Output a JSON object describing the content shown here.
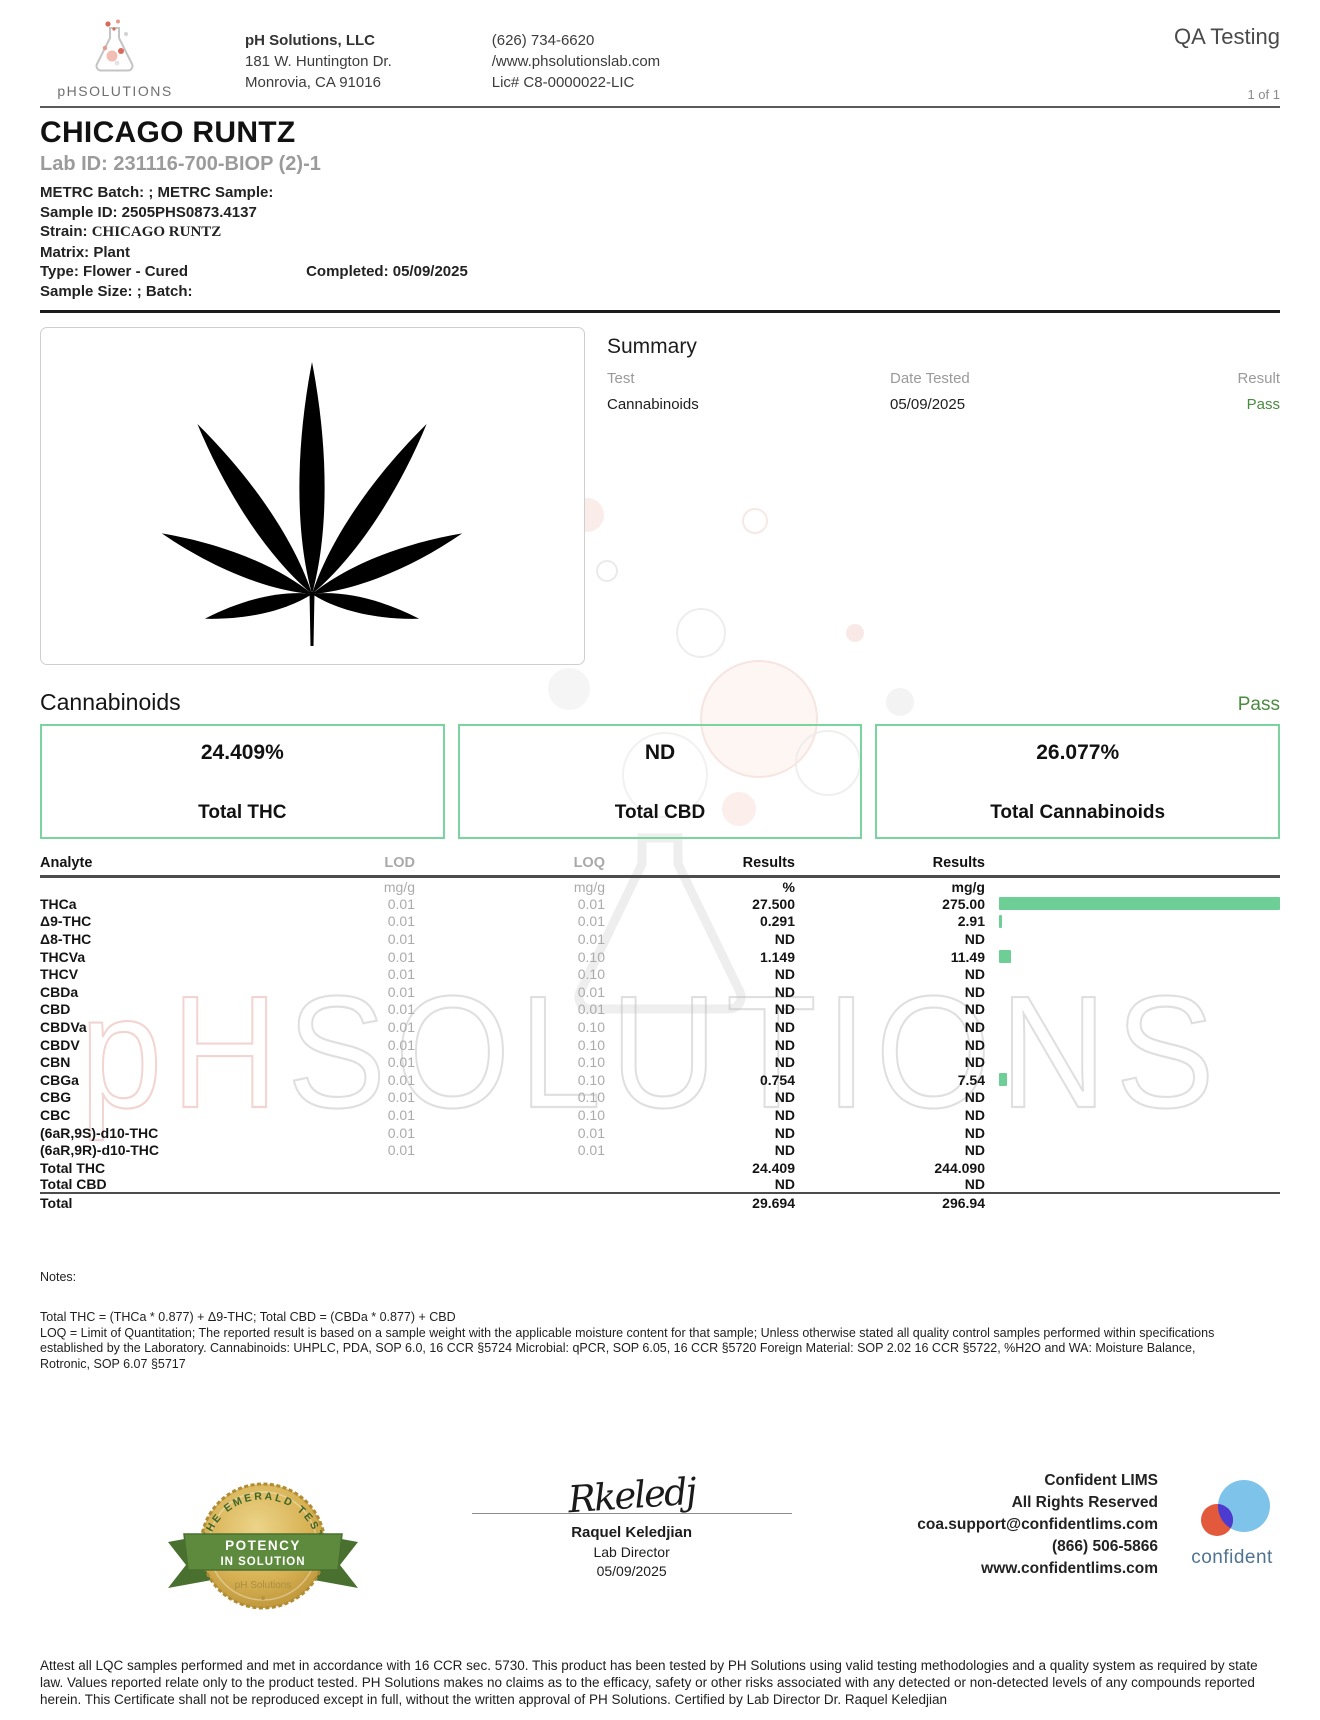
{
  "header": {
    "qa_label": "QA Testing",
    "page_indicator": "1 of 1",
    "logo": {
      "ph": "pH",
      "rest": "SOLUTIONS",
      "icon": "flask-with-bubbles"
    },
    "company": {
      "name": "pH Solutions, LLC",
      "address1": "181 W. Huntington Dr.",
      "address2": "Monrovia, CA 91016"
    },
    "contact": {
      "phone": "(626) 734-6620",
      "website": "/www.phsolutionslab.com",
      "license": "Lic# C8-0000022-LIC"
    }
  },
  "sample": {
    "title": "CHICAGO RUNTZ",
    "lab_id": "Lab ID: 231116-700-BIOP (2)-1",
    "metrc": "METRC Batch: ; METRC Sample:",
    "sample_id": "Sample ID: 2505PHS0873.4137",
    "strain_label": "Strain: ",
    "strain_value": "CHICAGO RUNTZ",
    "matrix": "Matrix: Plant",
    "type": "Type: Flower - Cured",
    "completed": "Completed: 05/09/2025",
    "size_batch": "Sample Size: ; Batch:"
  },
  "summary": {
    "title": "Summary",
    "col_test": "Test",
    "col_date": "Date Tested",
    "col_result": "Result",
    "rows": [
      {
        "test": "Cannabinoids",
        "date": "05/09/2025",
        "result": "Pass"
      }
    ]
  },
  "cannabinoids": {
    "title": "Cannabinoids",
    "status": "Pass",
    "boxes": [
      {
        "value": "24.409%",
        "label": "Total THC"
      },
      {
        "value": "ND",
        "label": "Total CBD"
      },
      {
        "value": "26.077%",
        "label": "Total Cannabinoids"
      }
    ]
  },
  "table": {
    "col_analyte": "Analyte",
    "col_lod": "LOD",
    "col_loq": "LOQ",
    "col_results_pct": "Results",
    "col_results_mgg": "Results",
    "units": {
      "lod": "mg/g",
      "loq": "mg/g",
      "pct": "%",
      "mgg": "mg/g"
    },
    "bar_max": 275,
    "bar_color": "#6ecf96",
    "rows": [
      {
        "analyte": "THCa",
        "lod": "0.01",
        "loq": "0.01",
        "pct": "27.500",
        "mgg": "275.00",
        "bar": 275.0
      },
      {
        "analyte": "Δ9-THC",
        "lod": "0.01",
        "loq": "0.01",
        "pct": "0.291",
        "mgg": "2.91",
        "bar": 2.91
      },
      {
        "analyte": "Δ8-THC",
        "lod": "0.01",
        "loq": "0.01",
        "pct": "ND",
        "mgg": "ND",
        "bar": 0
      },
      {
        "analyte": "THCVa",
        "lod": "0.01",
        "loq": "0.10",
        "pct": "1.149",
        "mgg": "11.49",
        "bar": 11.49
      },
      {
        "analyte": "THCV",
        "lod": "0.01",
        "loq": "0.10",
        "pct": "ND",
        "mgg": "ND",
        "bar": 0
      },
      {
        "analyte": "CBDa",
        "lod": "0.01",
        "loq": "0.01",
        "pct": "ND",
        "mgg": "ND",
        "bar": 0
      },
      {
        "analyte": "CBD",
        "lod": "0.01",
        "loq": "0.01",
        "pct": "ND",
        "mgg": "ND",
        "bar": 0
      },
      {
        "analyte": "CBDVa",
        "lod": "0.01",
        "loq": "0.10",
        "pct": "ND",
        "mgg": "ND",
        "bar": 0
      },
      {
        "analyte": "CBDV",
        "lod": "0.01",
        "loq": "0.10",
        "pct": "ND",
        "mgg": "ND",
        "bar": 0
      },
      {
        "analyte": "CBN",
        "lod": "0.01",
        "loq": "0.10",
        "pct": "ND",
        "mgg": "ND",
        "bar": 0
      },
      {
        "analyte": "CBGa",
        "lod": "0.01",
        "loq": "0.10",
        "pct": "0.754",
        "mgg": "7.54",
        "bar": 7.54
      },
      {
        "analyte": "CBG",
        "lod": "0.01",
        "loq": "0.10",
        "pct": "ND",
        "mgg": "ND",
        "bar": 0
      },
      {
        "analyte": "CBC",
        "lod": "0.01",
        "loq": "0.10",
        "pct": "ND",
        "mgg": "ND",
        "bar": 0
      },
      {
        "analyte": "(6aR,9S)-d10-THC",
        "lod": "0.01",
        "loq": "0.01",
        "pct": "ND",
        "mgg": "ND",
        "bar": 0
      },
      {
        "analyte": "(6aR,9R)-d10-THC",
        "lod": "0.01",
        "loq": "0.01",
        "pct": "ND",
        "mgg": "ND",
        "bar": 0
      }
    ],
    "totals": [
      {
        "analyte": "Total THC",
        "lod": "",
        "loq": "",
        "pct": "24.409",
        "mgg": "244.090",
        "bar": 0,
        "separator_below": false
      },
      {
        "analyte": "Total CBD",
        "lod": "",
        "loq": "",
        "pct": "ND",
        "mgg": "ND",
        "bar": 0,
        "separator_below": true
      },
      {
        "analyte": "Total",
        "lod": "",
        "loq": "",
        "pct": "29.694",
        "mgg": "296.94",
        "bar": 0,
        "separator_below": false
      }
    ]
  },
  "notes": {
    "title": "Notes:",
    "formula": "Total THC = (THCa * 0.877) + Δ9-THC; Total CBD = (CBDa * 0.877) + CBD",
    "paragraph": "LOQ = Limit of Quantitation; The reported result is based on a sample weight with the applicable moisture content for that sample; Unless otherwise stated all quality control samples performed within specifications established by the Laboratory. Cannabinoids: UHPLC,  PDA, SOP 6.0, 16 CCR §5724 Microbial: qPCR, SOP 6.05, 16 CCR §5720  Foreign Material: SOP 2.02 16 CCR §5722, %H2O and WA: Moisture  Balance,  Rotronic, SOP 6.07 §5717"
  },
  "footer": {
    "badge": {
      "arc_text": "THE EMERALD TEST",
      "ribbon_line1": "POTENCY",
      "ribbon_line2": "IN SOLUTION",
      "sub_text": "pH Solutions"
    },
    "signature": {
      "script": "Rkeledj",
      "name": "Raquel Keledjian",
      "role": "Lab Director",
      "date": "05/09/2025"
    },
    "lims": {
      "line1": "Confident LIMS",
      "line2": "All Rights Reserved",
      "email": "coa.support@confidentlims.com",
      "phone": "(866) 506-5866",
      "website": "www.confidentlims.com",
      "logo_text": "confident"
    }
  },
  "disclaimer": "Attest all LQC samples performed and met in accordance with 16 CCR sec. 5730. This product has been tested by PH Solutions using valid testing methodologies and a quality system as required by state law. Values reported relate only to the product tested. PH Solutions makes no claims as to the efficacy, safety or other risks associated with any detected or non-detected levels of any compounds reported herein. This Certificate shall not be reproduced except in full, without the written approval of PH Solutions. Certified by Lab Director  Dr. Raquel Keledjian",
  "colors": {
    "accent_green_border": "#7bd3a0",
    "bar_green": "#6ecf96",
    "pass_green": "#4a8b3f"
  }
}
